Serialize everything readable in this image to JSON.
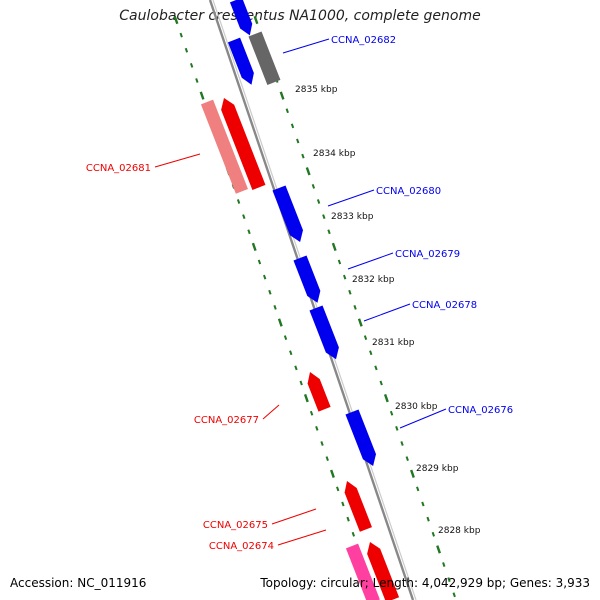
{
  "title": "Caulobacter crescentus NA1000, complete genome",
  "accession": "Accession: NC_011916",
  "summary": "Topology: circular; Length: 4,042,929 bp; Genes: 3,933",
  "colors": {
    "forward": "#0000ee",
    "reverse": "#ee0000",
    "reverse_light": "#f08080",
    "grey": "#666666",
    "pink": "#ff40a0",
    "backbone": "#888888",
    "scale": "#227722"
  },
  "scale_labels": [
    "2835 kbp",
    "2834 kbp",
    "2833 kbp",
    "2832 kbp",
    "2831 kbp",
    "2830 kbp",
    "2829 kbp",
    "2828 kbp"
  ],
  "genes": [
    {
      "name": "CCNA_02682",
      "strand": "forward"
    },
    {
      "name": "CCNA_02681",
      "strand": "reverse"
    },
    {
      "name": "CCNA_02680",
      "strand": "forward"
    },
    {
      "name": "CCNA_02679",
      "strand": "forward"
    },
    {
      "name": "CCNA_02678",
      "strand": "forward"
    },
    {
      "name": "CCNA_02677",
      "strand": "reverse"
    },
    {
      "name": "CCNA_02676",
      "strand": "forward"
    },
    {
      "name": "CCNA_02675",
      "strand": "reverse"
    },
    {
      "name": "CCNA_02674",
      "strand": "reverse"
    }
  ]
}
